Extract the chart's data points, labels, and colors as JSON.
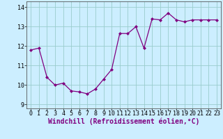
{
  "x": [
    0,
    1,
    2,
    3,
    4,
    5,
    6,
    7,
    8,
    9,
    10,
    11,
    12,
    13,
    14,
    15,
    16,
    17,
    18,
    19,
    20,
    21,
    22,
    23
  ],
  "y": [
    11.8,
    11.9,
    10.4,
    10.0,
    10.1,
    9.7,
    9.65,
    9.55,
    9.8,
    10.3,
    10.8,
    12.65,
    12.65,
    13.0,
    11.9,
    13.4,
    13.35,
    13.7,
    13.35,
    13.25,
    13.35,
    13.35,
    13.35,
    13.35
  ],
  "line_color": "#800080",
  "marker": "D",
  "marker_size": 2,
  "bg_color": "#cceeff",
  "grid_color": "#99cccc",
  "xlabel": "Windchill (Refroidissement éolien,°C)",
  "xlabel_fontsize": 7,
  "tick_fontsize": 6,
  "ylim": [
    8.8,
    14.3
  ],
  "yticks": [
    9,
    10,
    11,
    12,
    13,
    14
  ],
  "xlim": [
    -0.5,
    23.5
  ]
}
